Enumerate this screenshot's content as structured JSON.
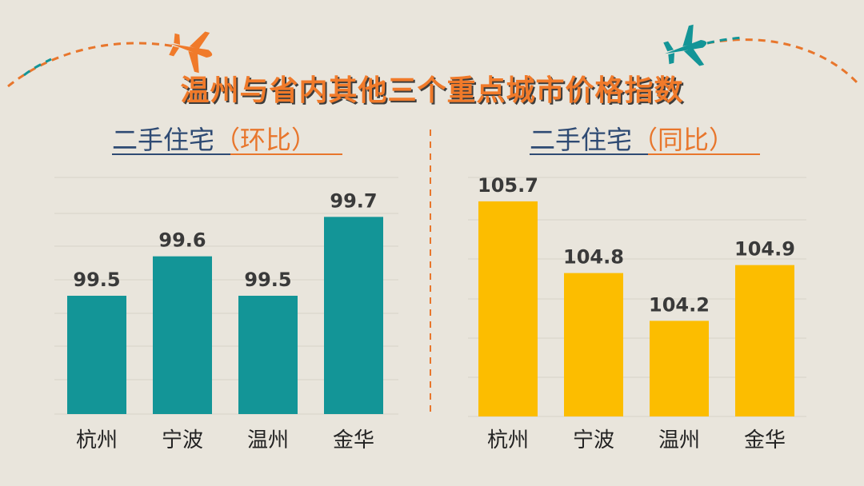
{
  "title": "温州与省内其他三个重点城市价格指数",
  "colors": {
    "background": "#e9e5dc",
    "teal": "#139597",
    "yellow": "#fcbd00",
    "orange": "#f07a2a",
    "navy": "#2e4a73"
  },
  "decor": {
    "left_icon": "airplane-icon",
    "right_icon": "airplane-icon"
  },
  "chart_data": [
    {
      "type": "bar",
      "subtitle_main": "二手住宅",
      "subtitle_paren": "（环比）",
      "categories": [
        "杭州",
        "宁波",
        "温州",
        "金华"
      ],
      "values": [
        99.5,
        99.6,
        99.5,
        99.7
      ],
      "value_labels": [
        "99.5",
        "99.6",
        "99.5",
        "99.7"
      ],
      "color": "#139597",
      "ylim": [
        99.2,
        99.8
      ],
      "grid": true
    },
    {
      "type": "bar",
      "subtitle_main": "二手住宅",
      "subtitle_paren": "（同比）",
      "categories": [
        "杭州",
        "宁波",
        "温州",
        "金华"
      ],
      "values": [
        105.7,
        104.8,
        104.2,
        104.9
      ],
      "value_labels": [
        "105.7",
        "104.8",
        "104.2",
        "104.9"
      ],
      "color": "#fcbd00",
      "ylim": [
        103.0,
        106.0
      ],
      "grid": true
    }
  ]
}
